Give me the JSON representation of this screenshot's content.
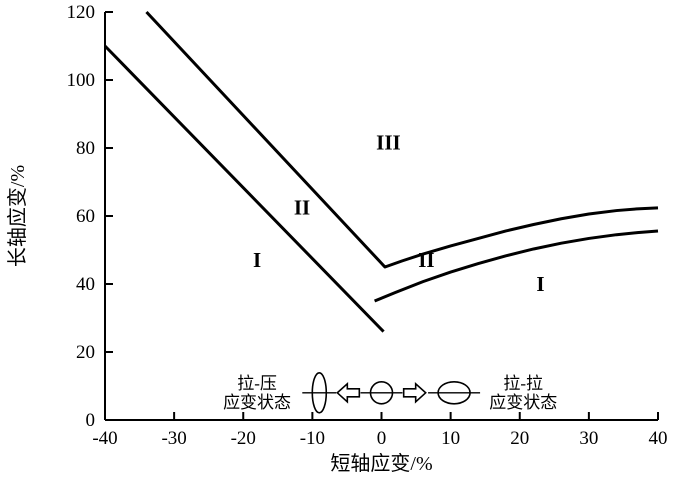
{
  "chart_data": {
    "type": "line",
    "title": "",
    "xlabel": "短轴应变/%",
    "ylabel": "长轴应变/%",
    "xlim": [
      -40,
      40
    ],
    "ylim": [
      0,
      120
    ],
    "xticks": [
      -40,
      -30,
      -20,
      -10,
      0,
      10,
      20,
      30,
      40
    ],
    "yticks": [
      0,
      20,
      40,
      60,
      80,
      100,
      120
    ],
    "grid": false,
    "legend": "none",
    "line_color": "#000000",
    "series": [
      {
        "name": "upper-forming-limit-curve",
        "points": [
          [
            -34,
            120
          ],
          [
            0.5,
            45
          ],
          [
            3,
            46.8
          ],
          [
            6,
            48.8
          ],
          [
            10,
            51.2
          ],
          [
            14,
            53.4
          ],
          [
            18,
            55.6
          ],
          [
            22,
            57.5
          ],
          [
            26,
            59.2
          ],
          [
            30,
            60.6
          ],
          [
            34,
            61.6
          ],
          [
            37,
            62.1
          ],
          [
            40,
            62.4
          ]
        ]
      },
      {
        "name": "lower-left-limit-line",
        "points": [
          [
            -40,
            110
          ],
          [
            0.3,
            26
          ]
        ]
      },
      {
        "name": "lower-right-limit-curve",
        "points": [
          [
            -1,
            35
          ],
          [
            2,
            37.5
          ],
          [
            6,
            40.7
          ],
          [
            10,
            43.5
          ],
          [
            14,
            46
          ],
          [
            18,
            48.3
          ],
          [
            22,
            50.3
          ],
          [
            26,
            52
          ],
          [
            30,
            53.4
          ],
          [
            34,
            54.5
          ],
          [
            37,
            55.1
          ],
          [
            40,
            55.6
          ]
        ]
      }
    ],
    "region_labels": [
      {
        "text": "I",
        "x": -18,
        "y": 45
      },
      {
        "text": "II",
        "x": -11.5,
        "y": 60.5
      },
      {
        "text": "III",
        "x": 1,
        "y": 79.5
      },
      {
        "text": "II",
        "x": 6.5,
        "y": 45
      },
      {
        "text": "I",
        "x": 23,
        "y": 38
      }
    ],
    "annotation": {
      "y": 8,
      "left_text": {
        "lines": [
          "拉-压",
          "应变状态"
        ],
        "x": -18
      },
      "right_text": {
        "lines": [
          "拉-拉",
          "应变状态"
        ],
        "x": 20.5
      },
      "shapes": [
        {
          "kind": "ellipse",
          "x": -9,
          "rx": 7,
          "ry": 20
        },
        {
          "kind": "arrow-left",
          "x": -4.8
        },
        {
          "kind": "ellipse",
          "x": 0,
          "rx": 11,
          "ry": 11
        },
        {
          "kind": "arrow-right",
          "x": 4.8
        },
        {
          "kind": "ellipse",
          "x": 10.5,
          "rx": 16,
          "ry": 11
        }
      ],
      "line_ext": 10
    }
  }
}
